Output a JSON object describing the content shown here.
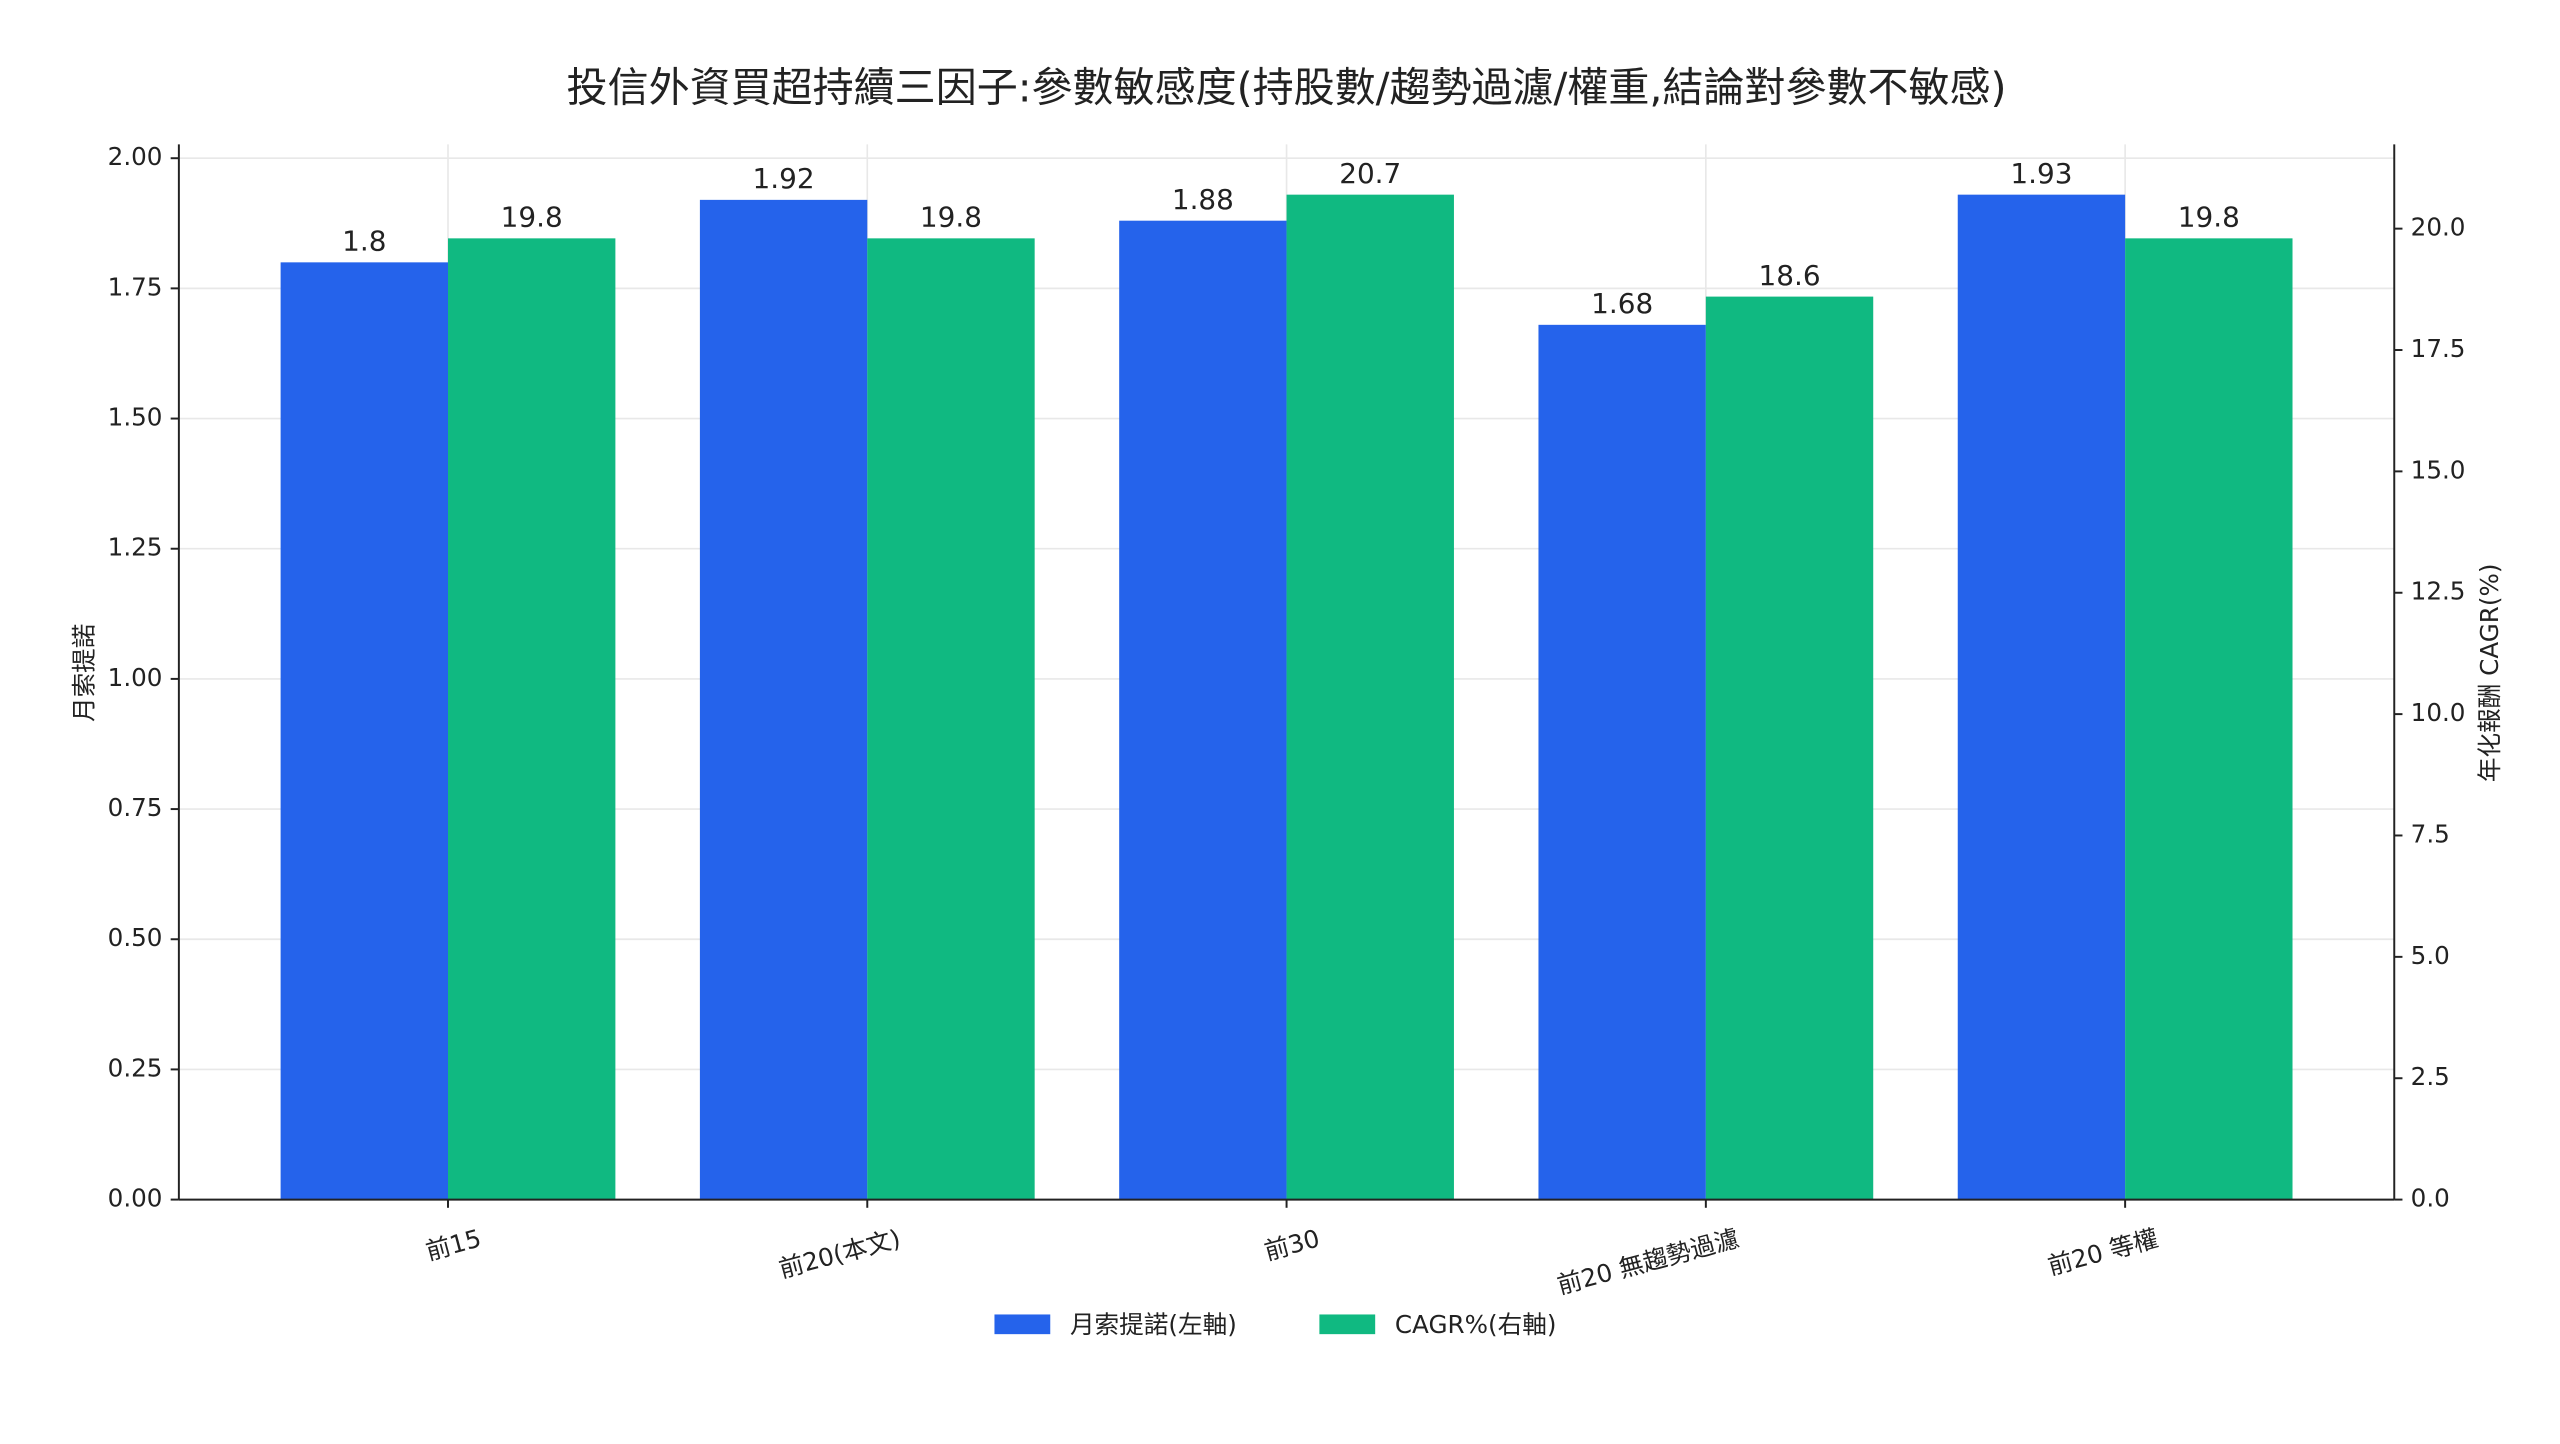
{
  "chart_data": {
    "type": "bar",
    "title": "投信外資買超持續三因子:參數敏感度(持股數/趨勢過濾/權重,結論對參數不敏感)",
    "categories": [
      "前15",
      "前20(本文)",
      "前30",
      "前20 無趨勢過濾",
      "前20 等權"
    ],
    "series": [
      {
        "name": "月索提諾(左軸)",
        "color": "#2563eb",
        "values": [
          1.8,
          1.92,
          1.88,
          1.68,
          1.93
        ]
      },
      {
        "name": "CAGR%(右軸)",
        "color": "#10b981",
        "axis": "y2",
        "values": [
          19.8,
          19.8,
          20.7,
          18.6,
          19.8
        ]
      }
    ],
    "ylabel": "月索提諾",
    "y2label": "年化報酬 CAGR(%)",
    "ylim": [
      0,
      2.0265
    ],
    "yticks": [
      {
        "value": 0,
        "label": "0.00"
      },
      {
        "value": 0.25,
        "label": "0.25"
      },
      {
        "value": 0.5,
        "label": "0.50"
      },
      {
        "value": 0.75,
        "label": "0.75"
      },
      {
        "value": 1,
        "label": "1.00"
      },
      {
        "value": 1.25,
        "label": "1.25"
      },
      {
        "value": 1.5,
        "label": "1.50"
      },
      {
        "value": 1.75,
        "label": "1.75"
      },
      {
        "value": 2,
        "label": "2.00"
      }
    ],
    "y2lim": [
      0,
      21.735
    ],
    "y2ticks": [
      {
        "value": 0,
        "label": "0.0"
      },
      2.5,
      {
        "value": 5,
        "label": "5.0"
      },
      7.5,
      {
        "value": 10,
        "label": "10.0"
      },
      12.5,
      {
        "value": 15,
        "label": "15.0"
      },
      17.5,
      {
        "value": 20,
        "label": "20.0"
      }
    ],
    "grid": true,
    "legend": "bottom"
  }
}
